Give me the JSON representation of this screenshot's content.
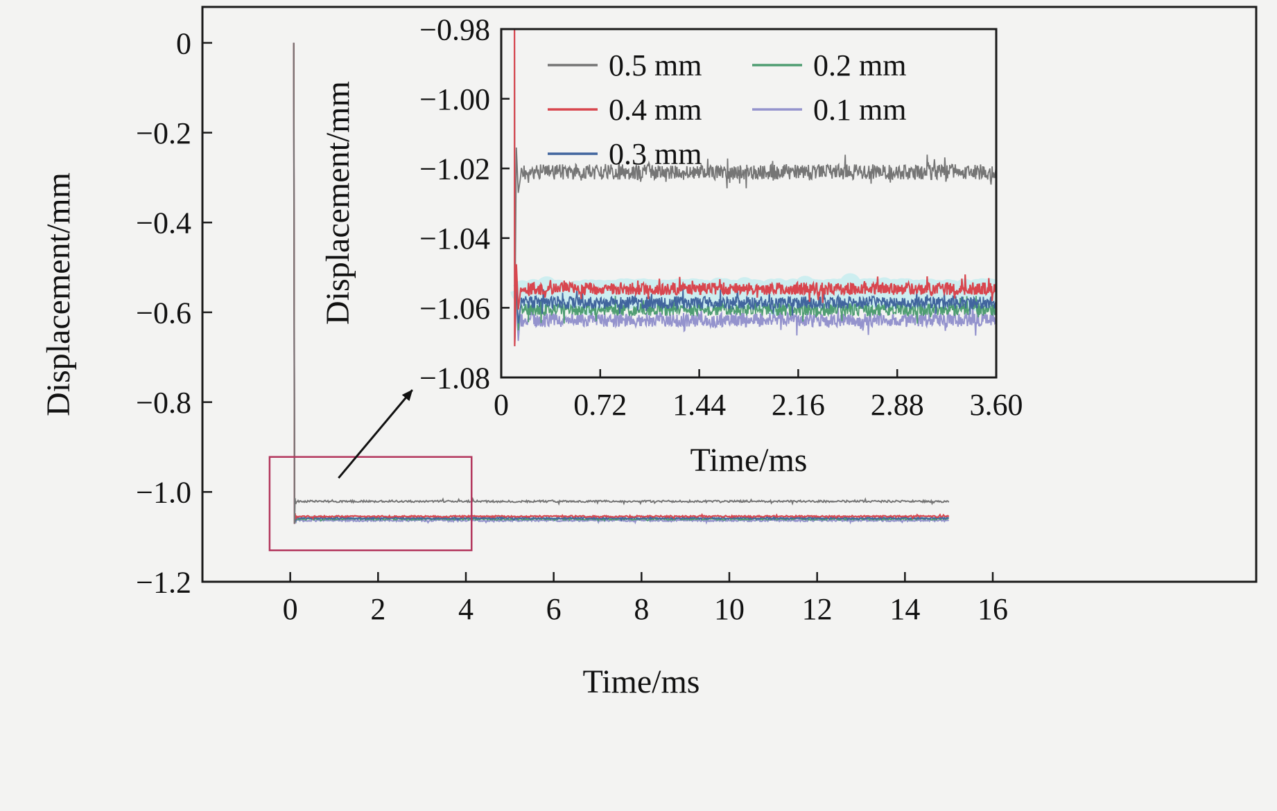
{
  "page": {
    "background": "#f3f3f2",
    "axis_color": "#1a1a1a"
  },
  "chart_data": [
    {
      "id": "main",
      "type": "line",
      "title": "",
      "xlabel": "Time/ms",
      "ylabel": "Displacement/mm",
      "xlim": [
        -2,
        22
      ],
      "ylim": [
        -1.2,
        0.08
      ],
      "grid": false,
      "xtick_values": [
        0,
        2,
        4,
        6,
        8,
        10,
        12,
        14,
        16
      ],
      "xtick_labels": [
        "0",
        "2",
        "4",
        "6",
        "8",
        "10",
        "12",
        "14",
        "16"
      ],
      "ytick_values": [
        0,
        -0.2,
        -0.4,
        -0.6,
        -0.8,
        -1.0,
        -1.2
      ],
      "ytick_labels": [
        "0",
        "−0.2",
        "−0.4",
        "−0.6",
        "−0.8",
        "−1.0",
        "−1.2"
      ],
      "time_range": [
        0.08,
        15.0
      ],
      "transient": {
        "start_time": 0.08,
        "start_value": 0,
        "overshoot_value": -1.071
      },
      "series": [
        {
          "label": "0.5 mm",
          "color": "#757575",
          "steady_value": -1.021,
          "noise_amplitude": 0.0022
        },
        {
          "label": "0.4 mm",
          "color": "#d8464e",
          "steady_value": -1.0545,
          "noise_amplitude": 0.0018
        },
        {
          "label": "0.3 mm",
          "color": "#41659e",
          "steady_value": -1.0585,
          "noise_amplitude": 0.0018
        },
        {
          "label": "0.2 mm",
          "color": "#4f9d72",
          "steady_value": -1.0605,
          "noise_amplitude": 0.0018
        },
        {
          "label": "0.1 mm",
          "color": "#9493cd",
          "steady_value": -1.0635,
          "noise_amplitude": 0.002
        }
      ],
      "background_band": {
        "color": "#cdeef0",
        "center": -1.056,
        "half_width": 0.003
      },
      "zoom_box": {
        "x": [
          -0.47,
          4.13
        ],
        "y": [
          -1.13,
          -0.922
        ],
        "color": "#b2355c"
      },
      "arrow": {
        "from": [
          1.1,
          -0.969
        ],
        "to": [
          2.78,
          -0.773
        ],
        "color": "#111111"
      }
    },
    {
      "id": "inset",
      "type": "line",
      "title": "",
      "xlabel": "Time/ms",
      "ylabel": "Displacement/mm",
      "xlim": [
        0,
        3.6
      ],
      "ylim": [
        -1.08,
        -0.98
      ],
      "grid": false,
      "xtick_values": [
        0,
        0.72,
        1.44,
        2.16,
        2.88,
        3.6
      ],
      "xtick_labels": [
        "0",
        "0.72",
        "1.44",
        "2.16",
        "2.88",
        "3.60"
      ],
      "ytick_values": [
        -0.98,
        -1.0,
        -1.02,
        -1.04,
        -1.06,
        -1.08
      ],
      "ytick_labels": [
        "−0.98",
        "−1.00",
        "−1.02",
        "−1.04",
        "−1.06",
        "−1.08"
      ],
      "time_range": [
        0.08,
        3.6
      ],
      "transient": {
        "start_time": 0.08,
        "start_value": 0,
        "overshoot_value": -1.071
      },
      "series": [
        {
          "label": "0.5 mm",
          "color": "#757575",
          "steady_value": -1.021,
          "noise_amplitude": 0.0022
        },
        {
          "label": "0.4 mm",
          "color": "#d8464e",
          "steady_value": -1.0545,
          "noise_amplitude": 0.0018
        },
        {
          "label": "0.3 mm",
          "color": "#41659e",
          "steady_value": -1.0585,
          "noise_amplitude": 0.0018
        },
        {
          "label": "0.2 mm",
          "color": "#4f9d72",
          "steady_value": -1.0605,
          "noise_amplitude": 0.0018
        },
        {
          "label": "0.1 mm",
          "color": "#9493cd",
          "steady_value": -1.0635,
          "noise_amplitude": 0.002
        }
      ],
      "background_band": {
        "color": "#cdeef0",
        "center": -1.056,
        "half_width": 0.003
      },
      "legend": {
        "position": "top-inside",
        "entries": [
          {
            "label": "0.5 mm",
            "col": 0,
            "row": 0
          },
          {
            "label": "0.2 mm",
            "col": 1,
            "row": 0
          },
          {
            "label": "0.4 mm",
            "col": 0,
            "row": 1
          },
          {
            "label": "0.1 mm",
            "col": 1,
            "row": 1
          },
          {
            "label": "0.3 mm",
            "col": 0,
            "row": 2
          }
        ]
      }
    }
  ]
}
